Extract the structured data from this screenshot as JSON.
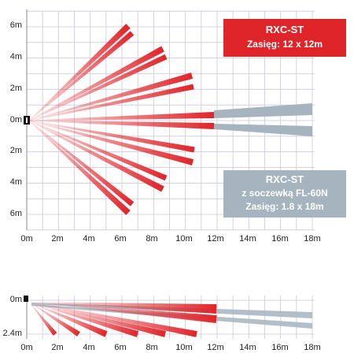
{
  "top_diagram": {
    "y_labels": [
      "6m",
      "4m",
      "2m",
      "0m",
      "2m",
      "4m",
      "6m"
    ],
    "x_labels": [
      "0m",
      "2m",
      "4m",
      "6m",
      "8m",
      "10m",
      "12m",
      "14m",
      "16m",
      "18m"
    ]
  },
  "legend_red": {
    "title": "RXC-ST",
    "range": "Zasięg:  12 x 12m",
    "color": "#e0252a"
  },
  "legend_grey": {
    "title": "RXC-ST",
    "subtitle": "z soczewką FL-60N",
    "range": "Zasięg: 1.8 x 18m",
    "color": "#a5b4bf"
  },
  "side_diagram": {
    "y_labels": [
      "0m",
      "2.4m"
    ],
    "x_labels": [
      "0m",
      "2m",
      "4m",
      "6m",
      "8m",
      "10m",
      "12m",
      "14m",
      "16m",
      "18m"
    ]
  },
  "icons": {
    "sensor": "sensor-icon"
  }
}
